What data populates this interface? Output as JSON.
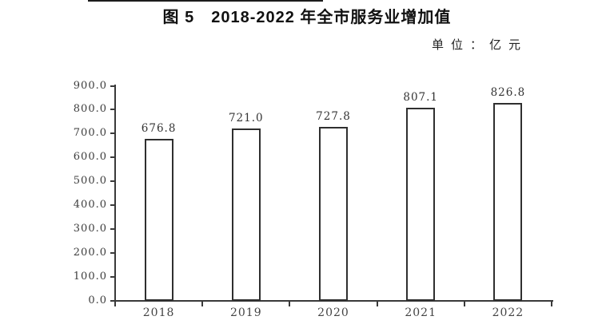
{
  "title": "图 5　2018-2022 年全市服务业增加值",
  "unit_label": "单位：亿元",
  "chart_data": {
    "type": "bar",
    "title": "图 5　2018-2022 年全市服务业增加值",
    "unit": "亿元",
    "categories": [
      "2018",
      "2019",
      "2020",
      "2021",
      "2022"
    ],
    "values": [
      676.8,
      721.0,
      727.8,
      807.1,
      826.8
    ],
    "value_labels": [
      "676.8",
      "721.0",
      "727.8",
      "807.1",
      "826.8"
    ],
    "ytick_labels": [
      "900.0",
      "800.0",
      "700.0",
      "600.0",
      "500.0",
      "400.0",
      "300.0",
      "200.0",
      "100.0",
      "0.0"
    ],
    "ylim": [
      0,
      900
    ],
    "ytick_step": 100,
    "grid": false,
    "legend": "none",
    "bar_fill": "#ffffff",
    "bar_border": "#2f2f2f"
  },
  "colors": {
    "background": "#ffffff",
    "axis": "#3a3a3a",
    "tick_text": "#3d3d3d",
    "value_text": "#333333",
    "title_text": "#111111"
  }
}
